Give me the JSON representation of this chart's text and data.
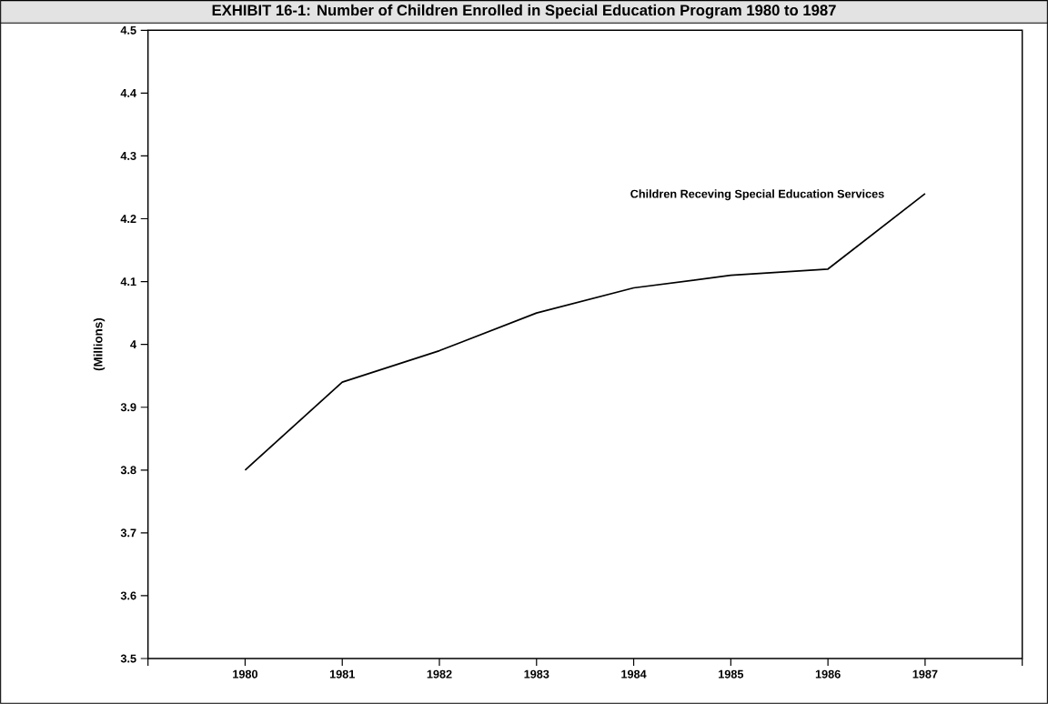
{
  "chart_data": {
    "type": "line",
    "title": "EXHIBIT 16-1: Number of Children Enrolled in Special Education Program 1980 to 1987",
    "ylabel": "(Millions)",
    "x": [
      1980,
      1981,
      1982,
      1983,
      1984,
      1985,
      1986,
      1987
    ],
    "series": [
      {
        "name": "Children Receving Special Education Services",
        "color": "#000000",
        "values": [
          3.8,
          3.94,
          3.99,
          4.05,
          4.09,
          4.11,
          4.12,
          4.24
        ]
      }
    ],
    "xlim": [
      1979,
      1988
    ],
    "xticks": [
      {
        "value": 1979,
        "label": null
      },
      1980,
      1981,
      1982,
      1983,
      1984,
      1985,
      1986,
      1987,
      {
        "value": 1988,
        "label": null
      }
    ],
    "ylim": [
      3.5,
      4.5
    ],
    "yticks": [
      3.5,
      3.6,
      3.7,
      3.8,
      3.9,
      4,
      4.1,
      4.2,
      4.3,
      4.4,
      4.5
    ],
    "grid": false,
    "legend": false,
    "marker": "none",
    "line_style": "solid"
  }
}
